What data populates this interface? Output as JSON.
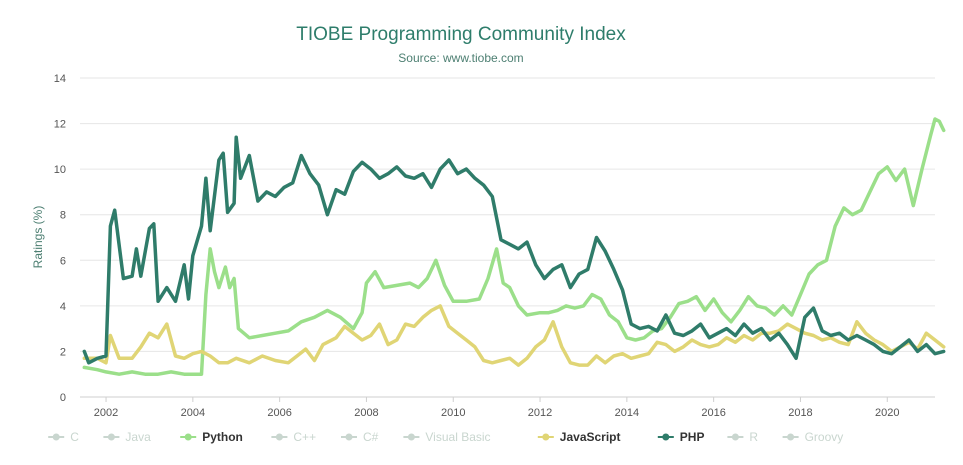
{
  "chart_data": {
    "type": "line",
    "title": "TIOBE Programming Community Index",
    "subtitle": "Source: www.tiobe.com",
    "ylabel": "Ratings (%)",
    "xlabel": "",
    "xlim": [
      2001.4,
      2021.1
    ],
    "ylim": [
      0,
      14
    ],
    "yticks": [
      0,
      2,
      4,
      6,
      8,
      10,
      12,
      14
    ],
    "xticks": [
      2002,
      2004,
      2006,
      2008,
      2010,
      2012,
      2014,
      2016,
      2018,
      2020
    ],
    "grid": true,
    "legend_position": "bottom",
    "legend": [
      {
        "name": "C",
        "visible": false
      },
      {
        "name": "Java",
        "visible": false
      },
      {
        "name": "Python",
        "visible": true
      },
      {
        "name": "C++",
        "visible": false
      },
      {
        "name": "C#",
        "visible": false
      },
      {
        "name": "Visual Basic",
        "visible": false
      },
      {
        "name": "JavaScript",
        "visible": true
      },
      {
        "name": "PHP",
        "visible": true
      },
      {
        "name": "R",
        "visible": false
      },
      {
        "name": "Groovy",
        "visible": false
      }
    ],
    "series": [
      {
        "name": "Python",
        "color": "#9bdf8a",
        "points": [
          [
            2001.5,
            1.3
          ],
          [
            2001.8,
            1.2
          ],
          [
            2002.0,
            1.1
          ],
          [
            2002.3,
            1.0
          ],
          [
            2002.6,
            1.1
          ],
          [
            2002.9,
            1.0
          ],
          [
            2003.2,
            1.0
          ],
          [
            2003.5,
            1.1
          ],
          [
            2003.8,
            1.0
          ],
          [
            2004.0,
            1.0
          ],
          [
            2004.2,
            1.0
          ],
          [
            2004.3,
            4.5
          ],
          [
            2004.4,
            6.5
          ],
          [
            2004.5,
            5.5
          ],
          [
            2004.6,
            4.8
          ],
          [
            2004.75,
            5.7
          ],
          [
            2004.85,
            4.8
          ],
          [
            2004.95,
            5.2
          ],
          [
            2005.05,
            3.0
          ],
          [
            2005.3,
            2.6
          ],
          [
            2005.6,
            2.7
          ],
          [
            2005.9,
            2.8
          ],
          [
            2006.2,
            2.9
          ],
          [
            2006.5,
            3.3
          ],
          [
            2006.8,
            3.5
          ],
          [
            2007.1,
            3.8
          ],
          [
            2007.4,
            3.5
          ],
          [
            2007.7,
            3.0
          ],
          [
            2007.9,
            3.7
          ],
          [
            2008.0,
            5.0
          ],
          [
            2008.2,
            5.5
          ],
          [
            2008.4,
            4.8
          ],
          [
            2008.7,
            4.9
          ],
          [
            2009.0,
            5.0
          ],
          [
            2009.2,
            4.8
          ],
          [
            2009.4,
            5.2
          ],
          [
            2009.6,
            6.0
          ],
          [
            2009.8,
            4.9
          ],
          [
            2010.0,
            4.2
          ],
          [
            2010.3,
            4.2
          ],
          [
            2010.6,
            4.3
          ],
          [
            2010.8,
            5.2
          ],
          [
            2011.0,
            6.5
          ],
          [
            2011.15,
            5.0
          ],
          [
            2011.3,
            4.8
          ],
          [
            2011.5,
            4.0
          ],
          [
            2011.7,
            3.6
          ],
          [
            2012.0,
            3.7
          ],
          [
            2012.2,
            3.7
          ],
          [
            2012.4,
            3.8
          ],
          [
            2012.6,
            4.0
          ],
          [
            2012.8,
            3.9
          ],
          [
            2013.0,
            4.0
          ],
          [
            2013.2,
            4.5
          ],
          [
            2013.4,
            4.3
          ],
          [
            2013.6,
            3.6
          ],
          [
            2013.8,
            3.3
          ],
          [
            2014.0,
            2.6
          ],
          [
            2014.2,
            2.5
          ],
          [
            2014.4,
            2.6
          ],
          [
            2014.6,
            2.9
          ],
          [
            2014.8,
            3.0
          ],
          [
            2015.0,
            3.5
          ],
          [
            2015.2,
            4.1
          ],
          [
            2015.4,
            4.2
          ],
          [
            2015.6,
            4.4
          ],
          [
            2015.8,
            3.8
          ],
          [
            2016.0,
            4.3
          ],
          [
            2016.2,
            3.7
          ],
          [
            2016.4,
            3.3
          ],
          [
            2016.6,
            3.8
          ],
          [
            2016.8,
            4.4
          ],
          [
            2017.0,
            4.0
          ],
          [
            2017.2,
            3.9
          ],
          [
            2017.4,
            3.6
          ],
          [
            2017.6,
            4.0
          ],
          [
            2017.8,
            3.6
          ],
          [
            2018.0,
            4.5
          ],
          [
            2018.2,
            5.4
          ],
          [
            2018.4,
            5.8
          ],
          [
            2018.6,
            6.0
          ],
          [
            2018.8,
            7.5
          ],
          [
            2019.0,
            8.3
          ],
          [
            2019.2,
            8.0
          ],
          [
            2019.4,
            8.2
          ],
          [
            2019.6,
            9.0
          ],
          [
            2019.8,
            9.8
          ],
          [
            2020.0,
            10.1
          ],
          [
            2020.2,
            9.5
          ],
          [
            2020.4,
            10.0
          ],
          [
            2020.6,
            8.4
          ],
          [
            2020.8,
            10.0
          ],
          [
            2021.0,
            11.5
          ],
          [
            2021.1,
            12.2
          ],
          [
            2021.2,
            12.1
          ],
          [
            2021.3,
            11.7
          ]
        ]
      },
      {
        "name": "JavaScript",
        "color": "#e0d575",
        "points": [
          [
            2001.5,
            1.7
          ],
          [
            2001.8,
            1.7
          ],
          [
            2002.0,
            1.5
          ],
          [
            2002.1,
            2.7
          ],
          [
            2002.3,
            1.7
          ],
          [
            2002.6,
            1.7
          ],
          [
            2002.8,
            2.2
          ],
          [
            2003.0,
            2.8
          ],
          [
            2003.2,
            2.6
          ],
          [
            2003.4,
            3.2
          ],
          [
            2003.6,
            1.8
          ],
          [
            2003.8,
            1.7
          ],
          [
            2004.0,
            1.9
          ],
          [
            2004.2,
            2.0
          ],
          [
            2004.4,
            1.8
          ],
          [
            2004.6,
            1.5
          ],
          [
            2004.8,
            1.5
          ],
          [
            2005.0,
            1.7
          ],
          [
            2005.3,
            1.5
          ],
          [
            2005.6,
            1.8
          ],
          [
            2005.9,
            1.6
          ],
          [
            2006.2,
            1.5
          ],
          [
            2006.4,
            1.8
          ],
          [
            2006.6,
            2.1
          ],
          [
            2006.8,
            1.6
          ],
          [
            2007.0,
            2.3
          ],
          [
            2007.3,
            2.6
          ],
          [
            2007.5,
            3.1
          ],
          [
            2007.7,
            2.8
          ],
          [
            2007.9,
            2.5
          ],
          [
            2008.1,
            2.7
          ],
          [
            2008.3,
            3.2
          ],
          [
            2008.5,
            2.3
          ],
          [
            2008.7,
            2.5
          ],
          [
            2008.9,
            3.2
          ],
          [
            2009.1,
            3.1
          ],
          [
            2009.3,
            3.5
          ],
          [
            2009.5,
            3.8
          ],
          [
            2009.7,
            4.0
          ],
          [
            2009.9,
            3.1
          ],
          [
            2010.1,
            2.8
          ],
          [
            2010.3,
            2.5
          ],
          [
            2010.5,
            2.2
          ],
          [
            2010.7,
            1.6
          ],
          [
            2010.9,
            1.5
          ],
          [
            2011.1,
            1.6
          ],
          [
            2011.3,
            1.7
          ],
          [
            2011.5,
            1.4
          ],
          [
            2011.7,
            1.7
          ],
          [
            2011.9,
            2.2
          ],
          [
            2012.1,
            2.5
          ],
          [
            2012.3,
            3.3
          ],
          [
            2012.5,
            2.2
          ],
          [
            2012.7,
            1.5
          ],
          [
            2012.9,
            1.4
          ],
          [
            2013.1,
            1.4
          ],
          [
            2013.3,
            1.8
          ],
          [
            2013.5,
            1.5
          ],
          [
            2013.7,
            1.8
          ],
          [
            2013.9,
            1.9
          ],
          [
            2014.1,
            1.7
          ],
          [
            2014.3,
            1.8
          ],
          [
            2014.5,
            1.9
          ],
          [
            2014.7,
            2.4
          ],
          [
            2014.9,
            2.3
          ],
          [
            2015.1,
            2.0
          ],
          [
            2015.3,
            2.2
          ],
          [
            2015.5,
            2.5
          ],
          [
            2015.7,
            2.3
          ],
          [
            2015.9,
            2.2
          ],
          [
            2016.1,
            2.3
          ],
          [
            2016.3,
            2.6
          ],
          [
            2016.5,
            2.4
          ],
          [
            2016.7,
            2.7
          ],
          [
            2016.9,
            2.5
          ],
          [
            2017.1,
            2.8
          ],
          [
            2017.3,
            2.8
          ],
          [
            2017.5,
            2.9
          ],
          [
            2017.7,
            3.2
          ],
          [
            2017.9,
            3.0
          ],
          [
            2018.1,
            2.8
          ],
          [
            2018.3,
            2.7
          ],
          [
            2018.5,
            2.5
          ],
          [
            2018.7,
            2.6
          ],
          [
            2018.9,
            2.4
          ],
          [
            2019.1,
            2.3
          ],
          [
            2019.3,
            3.3
          ],
          [
            2019.5,
            2.8
          ],
          [
            2019.7,
            2.5
          ],
          [
            2019.9,
            2.3
          ],
          [
            2020.1,
            2.0
          ],
          [
            2020.3,
            2.2
          ],
          [
            2020.5,
            2.4
          ],
          [
            2020.7,
            2.1
          ],
          [
            2020.9,
            2.8
          ],
          [
            2021.1,
            2.5
          ],
          [
            2021.3,
            2.2
          ]
        ]
      },
      {
        "name": "PHP",
        "color": "#2f7c6a",
        "points": [
          [
            2001.5,
            2.0
          ],
          [
            2001.6,
            1.5
          ],
          [
            2001.8,
            1.7
          ],
          [
            2002.0,
            1.8
          ],
          [
            2002.1,
            7.5
          ],
          [
            2002.2,
            8.2
          ],
          [
            2002.4,
            5.2
          ],
          [
            2002.6,
            5.3
          ],
          [
            2002.7,
            6.5
          ],
          [
            2002.8,
            5.3
          ],
          [
            2003.0,
            7.4
          ],
          [
            2003.1,
            7.6
          ],
          [
            2003.2,
            4.2
          ],
          [
            2003.4,
            4.8
          ],
          [
            2003.6,
            4.2
          ],
          [
            2003.8,
            5.8
          ],
          [
            2003.9,
            4.3
          ],
          [
            2004.0,
            6.2
          ],
          [
            2004.2,
            7.5
          ],
          [
            2004.3,
            9.6
          ],
          [
            2004.4,
            7.3
          ],
          [
            2004.6,
            10.4
          ],
          [
            2004.7,
            10.7
          ],
          [
            2004.8,
            8.1
          ],
          [
            2004.95,
            8.5
          ],
          [
            2005.0,
            11.4
          ],
          [
            2005.1,
            9.6
          ],
          [
            2005.3,
            10.6
          ],
          [
            2005.5,
            8.6
          ],
          [
            2005.7,
            9.0
          ],
          [
            2005.9,
            8.8
          ],
          [
            2006.1,
            9.2
          ],
          [
            2006.3,
            9.4
          ],
          [
            2006.5,
            10.6
          ],
          [
            2006.7,
            9.8
          ],
          [
            2006.9,
            9.3
          ],
          [
            2007.1,
            8.0
          ],
          [
            2007.3,
            9.1
          ],
          [
            2007.5,
            8.9
          ],
          [
            2007.7,
            9.9
          ],
          [
            2007.9,
            10.3
          ],
          [
            2008.1,
            10.0
          ],
          [
            2008.3,
            9.6
          ],
          [
            2008.5,
            9.8
          ],
          [
            2008.7,
            10.1
          ],
          [
            2008.9,
            9.7
          ],
          [
            2009.1,
            9.6
          ],
          [
            2009.3,
            9.8
          ],
          [
            2009.5,
            9.2
          ],
          [
            2009.7,
            10.0
          ],
          [
            2009.9,
            10.4
          ],
          [
            2010.1,
            9.8
          ],
          [
            2010.3,
            10.0
          ],
          [
            2010.5,
            9.6
          ],
          [
            2010.7,
            9.3
          ],
          [
            2010.9,
            8.8
          ],
          [
            2011.1,
            6.9
          ],
          [
            2011.3,
            6.7
          ],
          [
            2011.5,
            6.5
          ],
          [
            2011.7,
            6.8
          ],
          [
            2011.9,
            5.8
          ],
          [
            2012.1,
            5.2
          ],
          [
            2012.3,
            5.6
          ],
          [
            2012.5,
            5.8
          ],
          [
            2012.7,
            4.8
          ],
          [
            2012.9,
            5.4
          ],
          [
            2013.1,
            5.6
          ],
          [
            2013.3,
            7.0
          ],
          [
            2013.5,
            6.4
          ],
          [
            2013.7,
            5.6
          ],
          [
            2013.9,
            4.7
          ],
          [
            2014.1,
            3.2
          ],
          [
            2014.3,
            3.0
          ],
          [
            2014.5,
            3.1
          ],
          [
            2014.7,
            2.9
          ],
          [
            2014.9,
            3.6
          ],
          [
            2015.1,
            2.8
          ],
          [
            2015.3,
            2.7
          ],
          [
            2015.5,
            2.9
          ],
          [
            2015.7,
            3.2
          ],
          [
            2015.9,
            2.6
          ],
          [
            2016.1,
            2.8
          ],
          [
            2016.3,
            3.0
          ],
          [
            2016.5,
            2.7
          ],
          [
            2016.7,
            3.2
          ],
          [
            2016.9,
            2.8
          ],
          [
            2017.1,
            3.0
          ],
          [
            2017.3,
            2.5
          ],
          [
            2017.5,
            2.8
          ],
          [
            2017.7,
            2.3
          ],
          [
            2017.9,
            1.7
          ],
          [
            2018.1,
            3.5
          ],
          [
            2018.3,
            3.9
          ],
          [
            2018.5,
            2.9
          ],
          [
            2018.7,
            2.7
          ],
          [
            2018.9,
            2.8
          ],
          [
            2019.1,
            2.5
          ],
          [
            2019.3,
            2.7
          ],
          [
            2019.5,
            2.5
          ],
          [
            2019.7,
            2.3
          ],
          [
            2019.9,
            2.0
          ],
          [
            2020.1,
            1.9
          ],
          [
            2020.3,
            2.2
          ],
          [
            2020.5,
            2.5
          ],
          [
            2020.7,
            2.0
          ],
          [
            2020.9,
            2.3
          ],
          [
            2021.1,
            1.9
          ],
          [
            2021.3,
            2.0
          ]
        ]
      }
    ]
  }
}
